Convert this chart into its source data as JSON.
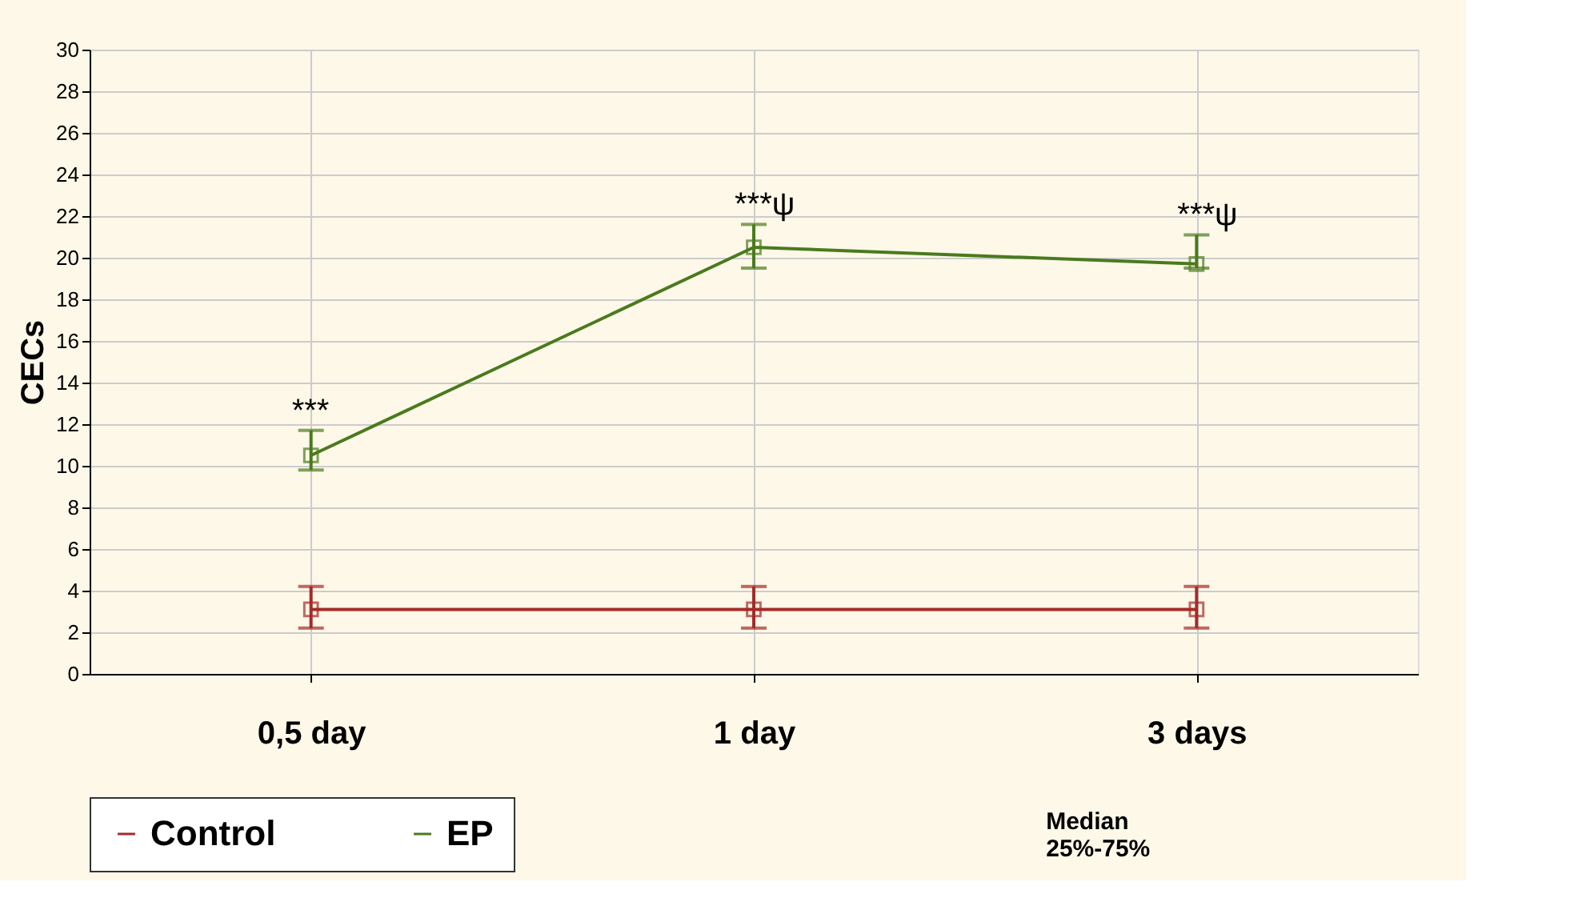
{
  "chart_data": {
    "type": "line",
    "ylabel": "CECs",
    "categories": [
      "0,5 day",
      "1 day",
      "3 days"
    ],
    "series": [
      {
        "name": "Control",
        "color": "#a52a2a",
        "values": [
          3.1,
          3.1,
          3.1
        ],
        "errors": [
          [
            2.2,
            4.2
          ],
          [
            2.2,
            4.2
          ],
          [
            2.2,
            4.2
          ]
        ]
      },
      {
        "name": "EP",
        "color": "#4a7a1e",
        "values": [
          10.5,
          20.5,
          19.7
        ],
        "errors": [
          [
            9.8,
            11.7
          ],
          [
            19.5,
            21.6
          ],
          [
            19.5,
            21.1
          ]
        ]
      }
    ],
    "ylim": [
      0,
      30
    ],
    "yticks": [
      0,
      2,
      4,
      6,
      8,
      10,
      12,
      14,
      16,
      18,
      20,
      22,
      24,
      26,
      28,
      30
    ],
    "grid": true,
    "legend": "bottom",
    "marker": "square",
    "line_style": "solid",
    "annotations": [
      "***",
      "***ψ",
      "***ψ",
      "Median\n25%-75%"
    ]
  }
}
